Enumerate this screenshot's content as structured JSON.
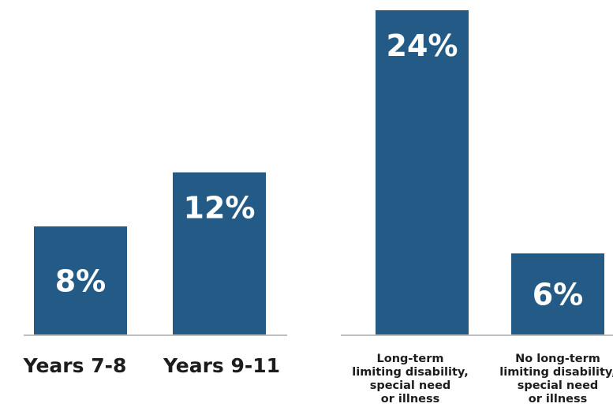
{
  "chart_data": [
    {
      "type": "bar",
      "categories": [
        "Years 7-8",
        "Years 9-11"
      ],
      "values": [
        8,
        12
      ],
      "value_labels": [
        "8%",
        "12%"
      ],
      "unit": "%",
      "bar_color": "#245b86"
    },
    {
      "type": "bar",
      "categories": [
        [
          "Long-term",
          "limiting disability,",
          "special need",
          "or illness"
        ],
        [
          "No long-term",
          "limiting disability,",
          "special need",
          "or illness"
        ]
      ],
      "values": [
        24,
        6
      ],
      "value_labels": [
        "24%",
        "6%"
      ],
      "unit": "%",
      "bar_color": "#245b86"
    }
  ]
}
